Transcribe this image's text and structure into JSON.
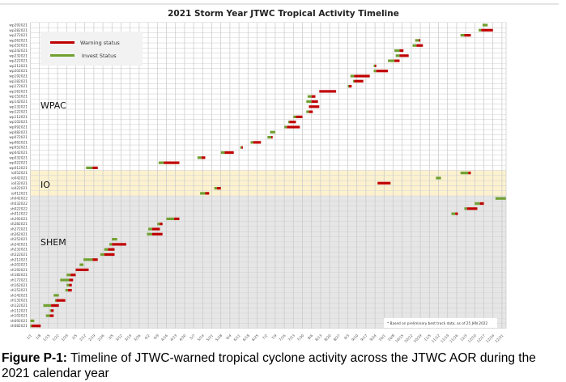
{
  "chart_data": {
    "type": "gantt",
    "title": "2021 Storm Year JTWC Tropical Activity Timeline",
    "x_range": [
      "2021-01-01",
      "2022-01-04"
    ],
    "x_tick_labels": [
      "1/1",
      "1/8",
      "1/15",
      "1/22",
      "1/29",
      "2/5",
      "2/12",
      "2/19",
      "2/26",
      "3/5",
      "3/12",
      "3/19",
      "3/26",
      "4/2",
      "4/9",
      "4/16",
      "4/23",
      "4/30",
      "5/7",
      "5/14",
      "5/21",
      "5/28",
      "6/4",
      "6/11",
      "6/18",
      "6/25",
      "7/2",
      "7/9",
      "7/16",
      "7/23",
      "7/30",
      "8/6",
      "8/13",
      "8/20",
      "8/27",
      "9/3",
      "9/10",
      "9/17",
      "9/24",
      "10/1",
      "10/8",
      "10/15",
      "10/22",
      "10/29",
      "11/5",
      "11/12",
      "11/19",
      "11/26",
      "12/3",
      "12/10",
      "12/17",
      "12/24",
      "12/31"
    ],
    "grid": true,
    "legend": {
      "position": "top-left",
      "items": [
        {
          "name": "Warning status",
          "color": "#c00000"
        },
        {
          "name": "Invest Status",
          "color": "#70a030"
        }
      ]
    },
    "regions": [
      {
        "name": "WPAC",
        "color": "#ffffff"
      },
      {
        "name": "IO",
        "color": "#fdf2cf"
      },
      {
        "name": "SHEM",
        "color": "#e6e6e6"
      }
    ],
    "note": "* Based on preliminary best track data, as of 25 JAN 2022",
    "storms": [
      {
        "id": "wp292021",
        "region": "WPAC",
        "invest": [
          "2021-12-16",
          "2021-12-20"
        ],
        "warning": null
      },
      {
        "id": "wp282021",
        "region": "WPAC",
        "invest": [
          "2021-12-13",
          "2021-12-15"
        ],
        "warning": [
          "2021-12-15",
          "2021-12-24"
        ]
      },
      {
        "id": "wp272021",
        "region": "WPAC",
        "invest": [
          "2021-11-29",
          "2021-12-02"
        ],
        "warning": [
          "2021-12-02",
          "2021-12-07"
        ]
      },
      {
        "id": "wp262021",
        "region": "WPAC",
        "invest": [
          "2021-10-25",
          "2021-10-28"
        ],
        "warning": [
          "2021-10-28",
          "2021-10-29"
        ]
      },
      {
        "id": "wp252021",
        "region": "WPAC",
        "invest": [
          "2021-10-23",
          "2021-10-26"
        ],
        "warning": [
          "2021-10-26",
          "2021-10-31"
        ]
      },
      {
        "id": "wp242021",
        "region": "WPAC",
        "invest": [
          "2021-10-09",
          "2021-10-13"
        ],
        "warning": [
          "2021-10-13",
          "2021-10-16"
        ]
      },
      {
        "id": "wp232021",
        "region": "WPAC",
        "invest": [
          "2021-10-10",
          "2021-10-13"
        ],
        "warning": [
          "2021-10-13",
          "2021-10-20"
        ]
      },
      {
        "id": "wp222021",
        "region": "WPAC",
        "invest": [
          "2021-10-04",
          "2021-10-09"
        ],
        "warning": [
          "2021-10-09",
          "2021-10-13"
        ]
      },
      {
        "id": "wp212021",
        "region": "WPAC",
        "invest": [
          "2021-09-23",
          "2021-09-24"
        ],
        "warning": [
          "2021-09-24",
          "2021-09-25"
        ]
      },
      {
        "id": "wp202021",
        "region": "WPAC",
        "invest": [
          "2021-09-23",
          "2021-09-25"
        ],
        "warning": [
          "2021-09-25",
          "2021-10-04"
        ]
      },
      {
        "id": "wp192021",
        "region": "WPAC",
        "invest": [
          "2021-09-05",
          "2021-09-08"
        ],
        "warning": [
          "2021-09-08",
          "2021-09-20"
        ]
      },
      {
        "id": "wp182021",
        "region": "WPAC",
        "invest": [
          "2021-09-07",
          "2021-09-08"
        ],
        "warning": [
          "2021-09-08",
          "2021-09-15"
        ]
      },
      {
        "id": "wp172021",
        "region": "WPAC",
        "invest": [
          "2021-09-03",
          "2021-09-04"
        ],
        "warning": [
          "2021-09-04",
          "2021-09-06"
        ]
      },
      {
        "id": "wp162021",
        "region": "WPAC",
        "invest": null,
        "warning": [
          "2021-08-12",
          "2021-08-25"
        ]
      },
      {
        "id": "wp152021",
        "region": "WPAC",
        "invest": [
          "2021-08-03",
          "2021-08-06"
        ],
        "warning": [
          "2021-08-06",
          "2021-08-09"
        ]
      },
      {
        "id": "wp142021",
        "region": "WPAC",
        "invest": [
          "2021-08-02",
          "2021-08-06"
        ],
        "warning": [
          "2021-08-06",
          "2021-08-11"
        ]
      },
      {
        "id": "wp132021",
        "region": "WPAC",
        "invest": null,
        "warning": [
          "2021-08-04",
          "2021-08-12"
        ]
      },
      {
        "id": "wp122021",
        "region": "WPAC",
        "invest": [
          "2021-08-02",
          "2021-08-04"
        ],
        "warning": [
          "2021-08-04",
          "2021-08-07"
        ]
      },
      {
        "id": "wp112021",
        "region": "WPAC",
        "invest": [
          "2021-07-23",
          "2021-07-25"
        ],
        "warning": [
          "2021-07-25",
          "2021-07-30"
        ]
      },
      {
        "id": "wp102021",
        "region": "WPAC",
        "invest": [
          "2021-07-19",
          "2021-07-20"
        ],
        "warning": [
          "2021-07-20",
          "2021-07-25"
        ]
      },
      {
        "id": "wp092021",
        "region": "WPAC",
        "invest": [
          "2021-07-16",
          "2021-07-18"
        ],
        "warning": [
          "2021-07-18",
          "2021-07-28"
        ]
      },
      {
        "id": "wp082021",
        "region": "WPAC",
        "invest": [
          "2021-07-05",
          "2021-07-09"
        ],
        "warning": null
      },
      {
        "id": "wp072021",
        "region": "WPAC",
        "invest": [
          "2021-07-03",
          "2021-07-06"
        ],
        "warning": [
          "2021-07-06",
          "2021-07-07"
        ]
      },
      {
        "id": "wp062021",
        "region": "WPAC",
        "invest": [
          "2021-06-20",
          "2021-06-22"
        ],
        "warning": [
          "2021-06-22",
          "2021-06-28"
        ]
      },
      {
        "id": "wp052021",
        "region": "WPAC",
        "invest": [
          "2021-06-12",
          "2021-06-13"
        ],
        "warning": [
          "2021-06-13",
          "2021-06-14"
        ]
      },
      {
        "id": "wp042021",
        "region": "WPAC",
        "invest": [
          "2021-05-28",
          "2021-05-31"
        ],
        "warning": [
          "2021-05-31",
          "2021-06-07"
        ]
      },
      {
        "id": "wp032021",
        "region": "WPAC",
        "invest": [
          "2021-05-10",
          "2021-05-13"
        ],
        "warning": [
          "2021-05-13",
          "2021-05-16"
        ]
      },
      {
        "id": "wp022021",
        "region": "WPAC",
        "invest": [
          "2021-04-10",
          "2021-04-14"
        ],
        "warning": [
          "2021-04-14",
          "2021-04-26"
        ]
      },
      {
        "id": "wp012021",
        "region": "WPAC",
        "invest": [
          "2021-02-13",
          "2021-02-18"
        ],
        "warning": [
          "2021-02-18",
          "2021-02-22"
        ]
      },
      {
        "id": "io052021",
        "region": "IO",
        "invest": [
          "2021-11-29",
          "2021-12-05"
        ],
        "warning": [
          "2021-12-05",
          "2021-12-07"
        ]
      },
      {
        "id": "io042021",
        "region": "IO",
        "invest": [
          "2021-11-10",
          "2021-11-14"
        ],
        "warning": null
      },
      {
        "id": "io032021",
        "region": "IO",
        "invest": null,
        "warning": [
          "2021-09-26",
          "2021-10-06"
        ]
      },
      {
        "id": "io022021",
        "region": "IO",
        "invest": [
          "2021-05-23",
          "2021-05-25"
        ],
        "warning": [
          "2021-05-25",
          "2021-05-28"
        ]
      },
      {
        "id": "io012021",
        "region": "IO",
        "invest": [
          "2021-05-12",
          "2021-05-16"
        ],
        "warning": [
          "2021-05-16",
          "2021-05-19"
        ]
      },
      {
        "id": "sh042022",
        "region": "SHEM",
        "invest": [
          "2021-12-26",
          "2022-01-03"
        ],
        "warning": null
      },
      {
        "id": "sh032022",
        "region": "SHEM",
        "invest": [
          "2021-12-10",
          "2021-12-14"
        ],
        "warning": [
          "2021-12-14",
          "2021-12-17"
        ]
      },
      {
        "id": "sh022022",
        "region": "SHEM",
        "invest": [
          "2021-12-02",
          "2021-12-04"
        ],
        "warning": [
          "2021-12-04",
          "2021-12-12"
        ]
      },
      {
        "id": "sh012022",
        "region": "SHEM",
        "invest": [
          "2021-11-22",
          "2021-11-25"
        ],
        "warning": [
          "2021-11-25",
          "2021-11-27"
        ]
      },
      {
        "id": "sh292021",
        "region": "SHEM",
        "invest": [
          "2021-04-16",
          "2021-04-22"
        ],
        "warning": [
          "2021-04-22",
          "2021-04-26"
        ]
      },
      {
        "id": "sh282021",
        "region": "SHEM",
        "invest": [
          "2021-04-09",
          "2021-04-11"
        ],
        "warning": [
          "2021-04-11",
          "2021-04-13"
        ]
      },
      {
        "id": "sh272021",
        "region": "SHEM",
        "invest": [
          "2021-04-02",
          "2021-04-05"
        ],
        "warning": [
          "2021-04-05",
          "2021-04-11"
        ]
      },
      {
        "id": "sh262021",
        "region": "SHEM",
        "invest": [
          "2021-04-01",
          "2021-04-05"
        ],
        "warning": [
          "2021-04-05",
          "2021-04-13"
        ]
      },
      {
        "id": "sh252021",
        "region": "SHEM",
        "invest": [
          "2021-03-05",
          "2021-03-09"
        ],
        "warning": null
      },
      {
        "id": "sh242021",
        "region": "SHEM",
        "invest": [
          "2021-03-03",
          "2021-03-05"
        ],
        "warning": [
          "2021-03-05",
          "2021-03-16"
        ]
      },
      {
        "id": "sh232021",
        "region": "SHEM",
        "invest": [
          "2021-02-27",
          "2021-03-02"
        ],
        "warning": [
          "2021-03-02",
          "2021-03-07"
        ]
      },
      {
        "id": "sh222021",
        "region": "SHEM",
        "invest": [
          "2021-02-24",
          "2021-02-27"
        ],
        "warning": [
          "2021-02-27",
          "2021-03-07"
        ]
      },
      {
        "id": "sh212021",
        "region": "SHEM",
        "invest": [
          "2021-02-11",
          "2021-02-18"
        ],
        "warning": [
          "2021-02-18",
          "2021-02-22"
        ]
      },
      {
        "id": "sh202021",
        "region": "SHEM",
        "invest": [
          "2021-02-08",
          "2021-02-11"
        ],
        "warning": null
      },
      {
        "id": "sh192021",
        "region": "SHEM",
        "invest": null,
        "warning": [
          "2021-02-05",
          "2021-02-15"
        ]
      },
      {
        "id": "sh182021",
        "region": "SHEM",
        "invest": [
          "2021-01-29",
          "2021-02-01"
        ],
        "warning": [
          "2021-02-01",
          "2021-02-05"
        ]
      },
      {
        "id": "sh172021",
        "region": "SHEM",
        "invest": [
          "2021-01-24",
          "2021-01-31"
        ],
        "warning": [
          "2021-01-31",
          "2021-02-03"
        ]
      },
      {
        "id": "sh162021",
        "region": "SHEM",
        "invest": [
          "2021-01-29",
          "2021-01-31"
        ],
        "warning": [
          "2021-01-31",
          "2021-02-02"
        ]
      },
      {
        "id": "sh152021",
        "region": "SHEM",
        "invest": [
          "2021-01-28",
          "2021-01-30"
        ],
        "warning": [
          "2021-01-30",
          "2021-02-02"
        ]
      },
      {
        "id": "sh142021",
        "region": "SHEM",
        "invest": [
          "2021-01-19",
          "2021-01-23"
        ],
        "warning": null
      },
      {
        "id": "sh132021",
        "region": "SHEM",
        "invest": [
          "2021-01-20",
          "2021-01-21"
        ],
        "warning": [
          "2021-01-21",
          "2021-01-28"
        ]
      },
      {
        "id": "sh122021",
        "region": "SHEM",
        "invest": [
          "2021-01-11",
          "2021-01-17"
        ],
        "warning": [
          "2021-01-17",
          "2021-01-23"
        ]
      },
      {
        "id": "sh112021",
        "region": "SHEM",
        "invest": [
          "2021-01-16",
          "2021-01-17"
        ],
        "warning": [
          "2021-01-17",
          "2021-01-19"
        ]
      },
      {
        "id": "sh102021",
        "region": "SHEM",
        "invest": [
          "2021-01-13",
          "2021-01-16"
        ],
        "warning": [
          "2021-01-16",
          "2021-01-19"
        ]
      },
      {
        "id": "sh092021",
        "region": "SHEM",
        "invest": [
          "2021-01-01",
          "2021-01-04"
        ],
        "warning": null
      },
      {
        "id": "sh082021",
        "region": "SHEM",
        "invest": [
          "2021-01-01",
          "2021-01-02"
        ],
        "warning": [
          "2021-01-02",
          "2021-01-09"
        ]
      }
    ]
  },
  "caption": {
    "label": "Figure P-1:",
    "text": " Timeline of JTWC-warned tropical cyclone activity across the JTWC AOR during the 2021 calendar year"
  }
}
